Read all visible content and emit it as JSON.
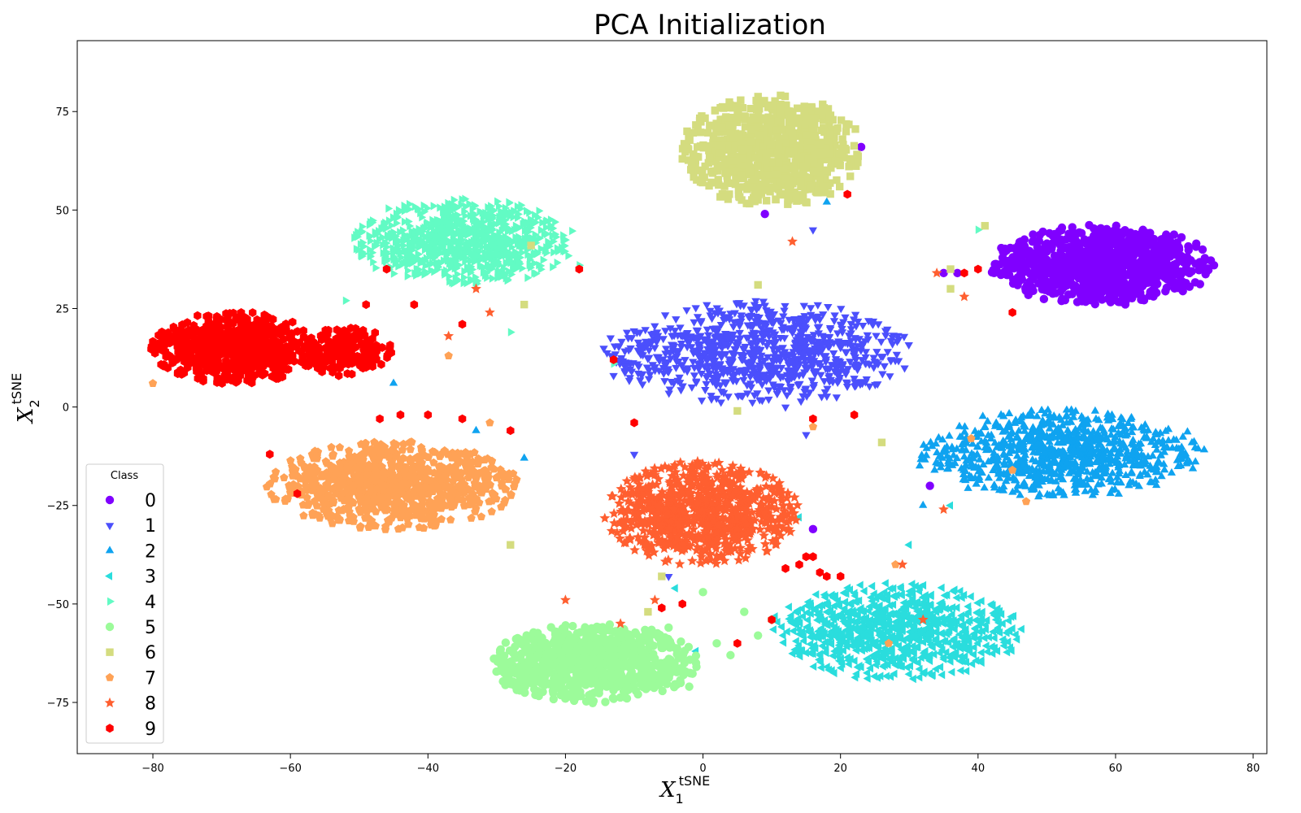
{
  "chart_data": {
    "type": "scatter",
    "title": "PCA Initialization",
    "xlabel": {
      "main": "X",
      "sub": "1",
      "sup": "tSNE"
    },
    "ylabel": {
      "main": "X",
      "sub": "2",
      "sup": "tSNE"
    },
    "xlim": [
      -91,
      82
    ],
    "ylim": [
      -88,
      93
    ],
    "xticks": [
      -80,
      -60,
      -40,
      -20,
      0,
      20,
      40,
      60,
      80
    ],
    "yticks": [
      -75,
      -50,
      -25,
      0,
      25,
      50,
      75
    ],
    "grid": false,
    "legend": {
      "title": "Class",
      "placement": "lower-left"
    },
    "series": [
      {
        "name": "0",
        "marker": "circle",
        "color": "#8000ff",
        "clusters": [
          {
            "cx": 58,
            "cy": 36,
            "rx": 16,
            "ry": 10,
            "n": 900
          }
        ],
        "points": [
          [
            9,
            49
          ],
          [
            16,
            -31
          ],
          [
            33,
            -20
          ],
          [
            35,
            34
          ],
          [
            37,
            34
          ],
          [
            23,
            66
          ]
        ]
      },
      {
        "name": "1",
        "marker": "triangle-down",
        "color": "#4b4ffc",
        "clusters": [
          {
            "cx": 8,
            "cy": 14,
            "rx": 22,
            "ry": 13,
            "n": 900
          }
        ],
        "points": [
          [
            -13,
            8
          ],
          [
            -10,
            -12
          ],
          [
            12,
            0
          ],
          [
            15,
            -7
          ],
          [
            -5,
            -43
          ],
          [
            16,
            45
          ]
        ]
      },
      {
        "name": "2",
        "marker": "triangle-up",
        "color": "#0fa3f0",
        "clusters": [
          {
            "cx": 52,
            "cy": -12,
            "rx": 21,
            "ry": 11,
            "n": 850
          }
        ],
        "points": [
          [
            -28,
            -6
          ],
          [
            -33,
            -6
          ],
          [
            -26,
            -13
          ],
          [
            18,
            52
          ],
          [
            32,
            -25
          ],
          [
            -45,
            6
          ]
        ]
      },
      {
        "name": "3",
        "marker": "triangle-left",
        "color": "#2adddd",
        "clusters": [
          {
            "cx": 28,
            "cy": -57,
            "rx": 18,
            "ry": 12,
            "n": 850
          }
        ],
        "points": [
          [
            30,
            -35
          ],
          [
            -1,
            -62
          ],
          [
            14,
            -28
          ],
          [
            36,
            -25
          ],
          [
            -4,
            -46
          ]
        ]
      },
      {
        "name": "4",
        "marker": "triangle-right",
        "color": "#62fbc4",
        "clusters": [
          {
            "cx": -35,
            "cy": 42,
            "rx": 16,
            "ry": 11,
            "n": 850
          }
        ],
        "points": [
          [
            -52,
            27
          ],
          [
            -13,
            11
          ],
          [
            11,
            58
          ],
          [
            -28,
            19
          ],
          [
            40,
            45
          ],
          [
            -18,
            36
          ]
        ]
      },
      {
        "name": "5",
        "marker": "circle",
        "color": "#9cfb9a",
        "clusters": [
          {
            "cx": -16,
            "cy": -65,
            "rx": 15,
            "ry": 10,
            "n": 850
          }
        ],
        "points": [
          [
            0,
            -47
          ],
          [
            6,
            -52
          ],
          [
            -5,
            -56
          ],
          [
            8,
            -58
          ],
          [
            10,
            -54
          ],
          [
            -2,
            -71
          ],
          [
            4,
            -63
          ],
          [
            2,
            -60
          ]
        ]
      },
      {
        "name": "6",
        "marker": "square",
        "color": "#d4dc7f",
        "clusters": [
          {
            "cx": 10,
            "cy": 65,
            "rx": 13,
            "ry": 14,
            "n": 800
          }
        ],
        "points": [
          [
            -25,
            41
          ],
          [
            -26,
            26
          ],
          [
            36,
            35
          ],
          [
            41,
            46
          ],
          [
            36,
            30
          ],
          [
            26,
            -9
          ],
          [
            -6,
            -43
          ],
          [
            -8,
            -52
          ],
          [
            5,
            -1
          ],
          [
            -28,
            -35
          ],
          [
            8,
            31
          ]
        ]
      },
      {
        "name": "7",
        "marker": "pentagon",
        "color": "#ffa256",
        "clusters": [
          {
            "cx": -45,
            "cy": -20,
            "rx": 18,
            "ry": 11,
            "n": 850
          }
        ],
        "points": [
          [
            -80,
            6
          ],
          [
            -37,
            13
          ],
          [
            39,
            -8
          ],
          [
            45,
            -16
          ],
          [
            28,
            -40
          ],
          [
            -31,
            -4
          ],
          [
            16,
            -5
          ],
          [
            47,
            -24
          ],
          [
            27,
            -60
          ]
        ]
      },
      {
        "name": "8",
        "marker": "star",
        "color": "#ff5f30",
        "clusters": [
          {
            "cx": 0,
            "cy": -27,
            "rx": 14,
            "ry": 13,
            "n": 850
          }
        ],
        "points": [
          [
            -37,
            18
          ],
          [
            -31,
            24
          ],
          [
            -33,
            30
          ],
          [
            13,
            42
          ],
          [
            34,
            34
          ],
          [
            38,
            28
          ],
          [
            -20,
            -49
          ],
          [
            -7,
            -49
          ],
          [
            -12,
            -55
          ],
          [
            35,
            -26
          ],
          [
            29,
            -40
          ],
          [
            32,
            -54
          ]
        ]
      },
      {
        "name": "9",
        "marker": "hexagon",
        "color": "#ff0000",
        "clusters": [
          {
            "cx": -68,
            "cy": 15,
            "rx": 12,
            "ry": 9,
            "n": 700
          },
          {
            "cx": -52,
            "cy": 14,
            "rx": 7,
            "ry": 6,
            "n": 200
          }
        ],
        "points": [
          [
            -46,
            35
          ],
          [
            -18,
            35
          ],
          [
            -49,
            26
          ],
          [
            -42,
            26
          ],
          [
            -47,
            -3
          ],
          [
            -44,
            -2
          ],
          [
            -40,
            -2
          ],
          [
            -35,
            -3
          ],
          [
            -35,
            21
          ],
          [
            -28,
            -6
          ],
          [
            21,
            54
          ],
          [
            45,
            24
          ],
          [
            40,
            35
          ],
          [
            38,
            34
          ],
          [
            -63,
            -12
          ],
          [
            -13,
            12
          ],
          [
            -10,
            -4
          ],
          [
            -6,
            -51
          ],
          [
            -3,
            -50
          ],
          [
            20,
            -43
          ],
          [
            15,
            -38
          ],
          [
            14,
            -40
          ],
          [
            17,
            -42
          ],
          [
            12,
            -41
          ],
          [
            16,
            -38
          ],
          [
            18,
            -43
          ],
          [
            10,
            -54
          ],
          [
            5,
            -60
          ],
          [
            16,
            -3
          ],
          [
            22,
            -2
          ],
          [
            -59,
            -22
          ]
        ]
      }
    ]
  }
}
